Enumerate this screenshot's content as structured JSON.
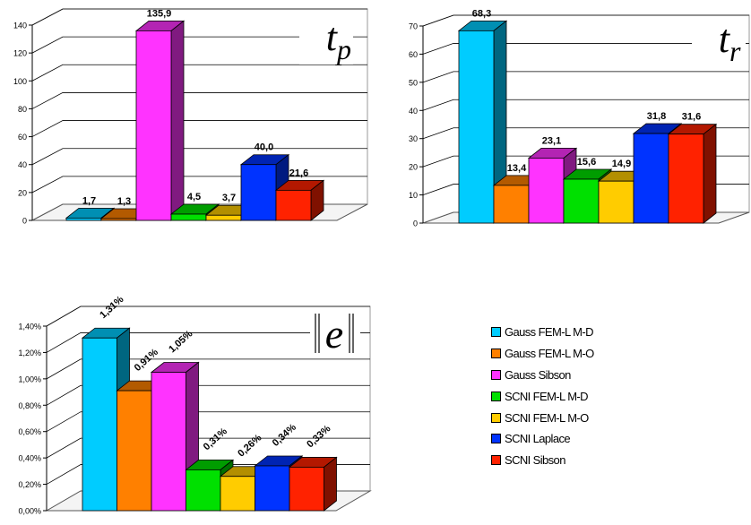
{
  "colors": {
    "Gauss FEM-L M-D": "#00CCFF",
    "Gauss FEM-L M-O": "#FF8000",
    "Gauss Sibson": "#FF33FF",
    "SCNI FEM-L M-D": "#00E000",
    "SCNI FEM-L M-O": "#FFCC00",
    "SCNI Laplace": "#0033FF",
    "SCNI Sibson": "#FF2200"
  },
  "legend": {
    "items": [
      "Gauss FEM-L M-D",
      "Gauss FEM-L M-O",
      "Gauss Sibson",
      "SCNI FEM-L M-D",
      "SCNI FEM-L M-O",
      "SCNI Laplace",
      "SCNI Sibson"
    ]
  },
  "chart_data": [
    {
      "type": "bar",
      "symbol": "t",
      "subscript": "p",
      "categories": [
        "Gauss FEM-L M-D",
        "Gauss FEM-L M-O",
        "Gauss Sibson",
        "SCNI FEM-L M-D",
        "SCNI FEM-L M-O",
        "SCNI Laplace",
        "SCNI Sibson"
      ],
      "values": [
        1.7,
        1.3,
        135.9,
        4.5,
        3.7,
        40.0,
        21.6
      ],
      "value_labels": [
        "1,7",
        "1,3",
        "135,9",
        "4,5",
        "3,7",
        "40,0",
        "21,6"
      ],
      "ylim": [
        0,
        140
      ],
      "yticks": [
        "0",
        "20",
        "40",
        "60",
        "80",
        "100",
        "120",
        "140"
      ],
      "grid": true
    },
    {
      "type": "bar",
      "symbol": "t",
      "subscript": "r",
      "categories": [
        "Gauss FEM-L M-D",
        "Gauss FEM-L M-O",
        "Gauss Sibson",
        "SCNI FEM-L M-D",
        "SCNI FEM-L M-O",
        "SCNI Laplace",
        "SCNI Sibson"
      ],
      "values": [
        68.3,
        13.4,
        23.1,
        15.6,
        14.9,
        31.8,
        31.6
      ],
      "value_labels": [
        "68,3",
        "13,4",
        "23,1",
        "15,6",
        "14,9",
        "31,8",
        "31,6"
      ],
      "ylim": [
        0,
        70
      ],
      "yticks": [
        "0",
        "10",
        "20",
        "30",
        "40",
        "50",
        "60",
        "70"
      ],
      "grid": true
    },
    {
      "type": "bar",
      "symbol": "e",
      "norm": true,
      "categories": [
        "Gauss FEM-L M-D",
        "Gauss FEM-L M-O",
        "Gauss Sibson",
        "SCNI FEM-L M-D",
        "SCNI FEM-L M-O",
        "SCNI Laplace",
        "SCNI Sibson"
      ],
      "values": [
        1.31,
        0.91,
        1.05,
        0.31,
        0.26,
        0.34,
        0.33
      ],
      "value_labels": [
        "1,31%",
        "0,91%",
        "1,05%",
        "0,31%",
        "0,26%",
        "0,34%",
        "0,33%"
      ],
      "ylim": [
        0,
        1.4
      ],
      "yticks": [
        "0,00%",
        "0,20%",
        "0,40%",
        "0,60%",
        "0,80%",
        "1,00%",
        "1,20%",
        "1,40%"
      ],
      "grid": true
    }
  ]
}
